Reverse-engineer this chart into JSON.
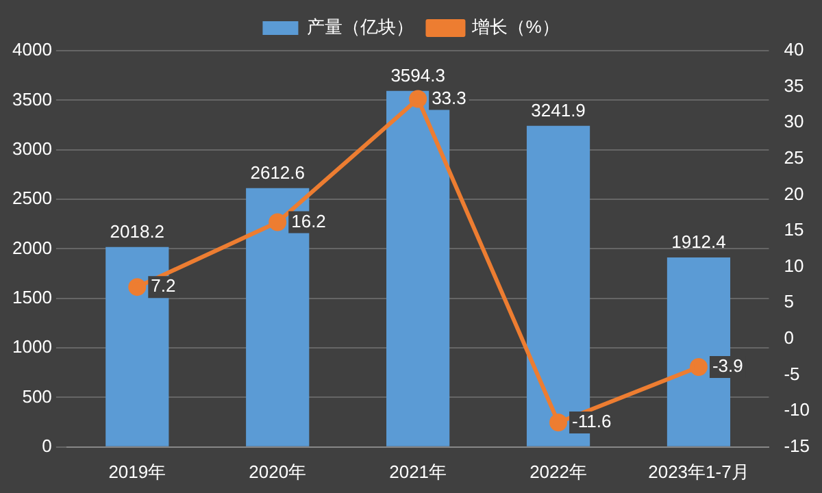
{
  "chart_data": {
    "type": "bar",
    "categories": [
      "2019年",
      "2020年",
      "2021年",
      "2022年",
      "2023年1-7月"
    ],
    "series": [
      {
        "name": "产量（亿块）",
        "color": "#5b9bd5",
        "values": [
          2018.2,
          2612.6,
          3594.3,
          3241.9,
          1912.4
        ]
      },
      {
        "name": "增长（%）",
        "type": "line",
        "axis": "y2",
        "color": "#ed7d31",
        "values": [
          7.2,
          16.2,
          33.3,
          -11.6,
          -3.9
        ]
      }
    ],
    "ylim": [
      0,
      4000
    ],
    "yticks": [
      0,
      500,
      1000,
      1500,
      2000,
      2500,
      3000,
      3500,
      4000
    ],
    "y2lim": [
      -15,
      40
    ],
    "y2ticks": [
      -15,
      -10,
      -5,
      0,
      5,
      10,
      15,
      20,
      25,
      30,
      35,
      40
    ],
    "grid": "y",
    "legend": "top",
    "marker": "circle",
    "line_style": "solid",
    "data_labels": true
  }
}
